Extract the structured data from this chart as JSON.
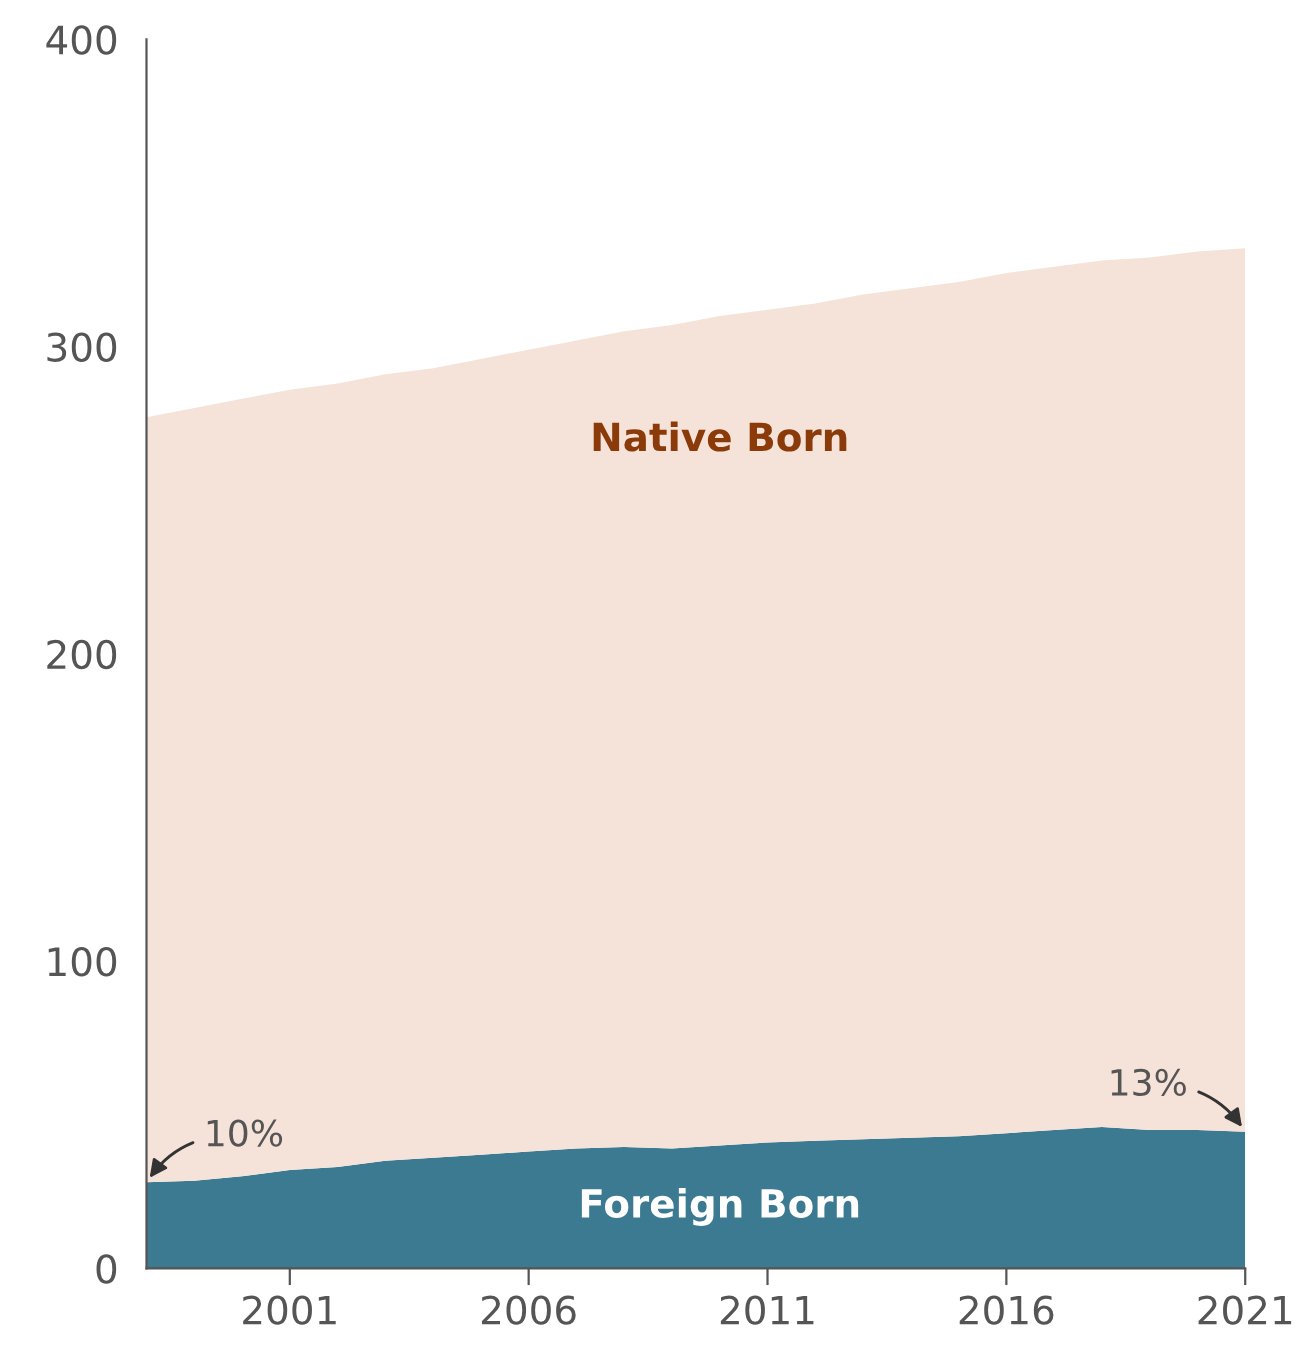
{
  "chart_data": {
    "type": "area",
    "stacked": true,
    "x": [
      1998,
      1999,
      2000,
      2001,
      2002,
      2003,
      2004,
      2005,
      2006,
      2007,
      2008,
      2009,
      2010,
      2011,
      2012,
      2013,
      2014,
      2015,
      2016,
      2017,
      2018,
      2019,
      2020,
      2021
    ],
    "series": [
      {
        "name": "Foreign Born",
        "color": "#3b7a91",
        "values": [
          28,
          28.5,
          30,
          32,
          33,
          35,
          36,
          37,
          38,
          39,
          39.5,
          39,
          40,
          41,
          41.5,
          42,
          42.5,
          43,
          44,
          45,
          46,
          45,
          45,
          44.5
        ]
      },
      {
        "name": "Native Born",
        "color": "#f5e3d9",
        "values": [
          249,
          251.5,
          253,
          254,
          255,
          256,
          257,
          259,
          261,
          263,
          265.5,
          268,
          270,
          271,
          272.5,
          275,
          276.5,
          278,
          280,
          281,
          282,
          284,
          286,
          287.5
        ]
      }
    ],
    "xlim": [
      1998,
      2021
    ],
    "xticks": [
      2001,
      2006,
      2011,
      2016,
      2021
    ],
    "ylim": [
      0,
      400
    ],
    "yticks": [
      0,
      100,
      200,
      300,
      400
    ],
    "grid": false,
    "annotations": [
      {
        "text": "10%",
        "x": 1998,
        "y": 28
      },
      {
        "text": "13%",
        "x": 2021,
        "y": 44.5
      }
    ]
  }
}
